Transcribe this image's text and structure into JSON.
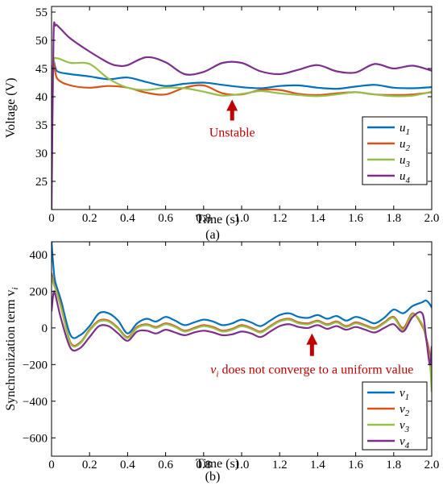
{
  "chart_data": [
    {
      "type": "line",
      "caption": "(a)",
      "xlabel": "Time (s)",
      "ylabel": "Voltage (V)",
      "xlim": [
        0,
        2.0
      ],
      "ylim": [
        20,
        56
      ],
      "xticks": [
        0,
        0.2,
        0.4,
        0.6,
        0.8,
        1.0,
        1.2,
        1.4,
        1.6,
        1.8,
        2.0
      ],
      "xtick_labels": [
        "0",
        "0.2",
        "0.4",
        "0.6",
        "0.8",
        "1.0",
        "1.2",
        "1.4",
        "1.6",
        "1.8",
        "2.0"
      ],
      "yticks": [
        25,
        30,
        35,
        40,
        45,
        50,
        55
      ],
      "ytick_labels": [
        "25",
        "30",
        "35",
        "40",
        "45",
        "50",
        "55"
      ],
      "legend_position": "right",
      "annotation": {
        "text": "Unstable",
        "color": "#c00000",
        "x": 0.95,
        "y": 39.5
      },
      "series": [
        {
          "name": "u",
          "subscript": "1",
          "color": "#0072BD",
          "x": [
            0,
            0.01,
            0.03,
            0.1,
            0.2,
            0.3,
            0.4,
            0.5,
            0.6,
            0.7,
            0.8,
            0.9,
            1.0,
            1.1,
            1.2,
            1.3,
            1.4,
            1.5,
            1.6,
            1.7,
            1.8,
            1.9,
            2.0
          ],
          "y": [
            39,
            46,
            44.5,
            44,
            43.6,
            43.1,
            43.4,
            42.6,
            41.9,
            42.3,
            42.5,
            42.1,
            41.7,
            41.5,
            41.9,
            42.0,
            41.6,
            41.4,
            41.8,
            42.1,
            41.6,
            41.5,
            41.7
          ]
        },
        {
          "name": "u",
          "subscript": "2",
          "color": "#D95319",
          "x": [
            0,
            0.01,
            0.03,
            0.1,
            0.2,
            0.3,
            0.4,
            0.5,
            0.6,
            0.7,
            0.8,
            0.9,
            1.0,
            1.1,
            1.2,
            1.3,
            1.4,
            1.5,
            1.6,
            1.7,
            1.8,
            1.9,
            2.0
          ],
          "y": [
            39,
            46,
            43.2,
            42,
            41.6,
            41.9,
            41.6,
            40.7,
            40.4,
            41.6,
            42.0,
            40.6,
            40.4,
            41.2,
            41.2,
            40.5,
            40.3,
            40.6,
            40.8,
            40.4,
            40.3,
            40.4,
            40.8
          ]
        },
        {
          "name": "u",
          "subscript": "3",
          "color": "#97BF4A",
          "x": [
            0,
            0.01,
            0.03,
            0.1,
            0.2,
            0.3,
            0.4,
            0.5,
            0.6,
            0.7,
            0.8,
            0.9,
            1.0,
            1.1,
            1.2,
            1.3,
            1.4,
            1.5,
            1.6,
            1.7,
            1.8,
            1.9,
            2.0
          ],
          "y": [
            39,
            46,
            46.8,
            46.0,
            45.8,
            43.2,
            41.6,
            41.2,
            41.6,
            41.5,
            40.9,
            40.2,
            40.5,
            41.0,
            40.6,
            40.3,
            40.1,
            40.4,
            40.8,
            40.4,
            40.1,
            40.2,
            40.9
          ]
        },
        {
          "name": "u",
          "subscript": "4",
          "color": "#7E2F8E",
          "x": [
            0,
            0.01,
            0.02,
            0.04,
            0.1,
            0.2,
            0.3,
            0.35,
            0.4,
            0.5,
            0.6,
            0.7,
            0.8,
            0.9,
            1.0,
            1.1,
            1.2,
            1.3,
            1.4,
            1.5,
            1.6,
            1.7,
            1.8,
            1.9,
            2.0
          ],
          "y": [
            20,
            50,
            52.6,
            52.3,
            50.3,
            48.0,
            46.0,
            45.5,
            45.6,
            47.0,
            46.1,
            44.0,
            44.4,
            46.0,
            46.0,
            44.5,
            44.0,
            44.8,
            45.6,
            44.5,
            44.3,
            45.8,
            45.0,
            45.5,
            44.6
          ]
        }
      ]
    },
    {
      "type": "line",
      "caption": "(b)",
      "xlabel": "Time (s)",
      "ylabel": "Synchronization term v",
      "ylabel_subscript": "i",
      "xlim": [
        0,
        2.0
      ],
      "ylim": [
        -700,
        470
      ],
      "xticks": [
        0,
        0.2,
        0.4,
        0.6,
        0.8,
        1.0,
        1.2,
        1.4,
        1.6,
        1.8,
        2.0
      ],
      "xtick_labels": [
        "0",
        "0.2",
        "0.4",
        "0.6",
        "0.8",
        "1.0",
        "1.2",
        "1.4",
        "1.6",
        "1.8",
        "2.0"
      ],
      "yticks": [
        -600,
        -400,
        -200,
        0,
        200,
        400
      ],
      "ytick_labels": [
        "−600",
        "−400",
        "−200",
        "0",
        "200",
        "400"
      ],
      "legend_position": "bottom-right",
      "annotation": {
        "text_prefix": "v",
        "text_subscript": "i",
        "text_suffix": " does not converge to a uniform value",
        "color": "#c00000",
        "x": 1.37,
        "y": -30
      },
      "series": [
        {
          "name": "v",
          "subscript": "1",
          "color": "#0072BD",
          "x": [
            0,
            0.01,
            0.02,
            0.05,
            0.1,
            0.15,
            0.2,
            0.25,
            0.3,
            0.35,
            0.4,
            0.45,
            0.5,
            0.55,
            0.6,
            0.65,
            0.7,
            0.75,
            0.8,
            0.85,
            0.9,
            0.95,
            1.0,
            1.05,
            1.1,
            1.15,
            1.2,
            1.25,
            1.3,
            1.35,
            1.4,
            1.45,
            1.5,
            1.55,
            1.6,
            1.65,
            1.7,
            1.75,
            1.8,
            1.85,
            1.9,
            1.95,
            1.97,
            1.99,
            2.0
          ],
          "y": [
            470,
            330,
            250,
            150,
            -40,
            -40,
            10,
            80,
            80,
            40,
            -30,
            25,
            50,
            35,
            60,
            40,
            15,
            30,
            45,
            35,
            15,
            25,
            45,
            30,
            10,
            40,
            70,
            80,
            60,
            55,
            70,
            50,
            65,
            40,
            60,
            45,
            25,
            55,
            100,
            80,
            120,
            140,
            150,
            130,
            110
          ]
        },
        {
          "name": "v",
          "subscript": "2",
          "color": "#D95319",
          "x": [
            0,
            0.01,
            0.02,
            0.05,
            0.1,
            0.15,
            0.2,
            0.25,
            0.3,
            0.35,
            0.4,
            0.45,
            0.5,
            0.55,
            0.6,
            0.65,
            0.7,
            0.75,
            0.8,
            0.85,
            0.9,
            0.95,
            1.0,
            1.05,
            1.1,
            1.15,
            1.2,
            1.25,
            1.3,
            1.35,
            1.4,
            1.45,
            1.5,
            1.55,
            1.6,
            1.65,
            1.7,
            1.75,
            1.8,
            1.85,
            1.9,
            1.95,
            1.97,
            1.99,
            2.0
          ],
          "y": [
            300,
            250,
            220,
            120,
            -80,
            -80,
            -10,
            40,
            40,
            0,
            -50,
            5,
            20,
            5,
            25,
            10,
            -15,
            0,
            15,
            5,
            -15,
            -5,
            15,
            0,
            -20,
            10,
            40,
            50,
            30,
            25,
            40,
            20,
            35,
            10,
            30,
            15,
            0,
            30,
            60,
            0,
            80,
            10,
            -50,
            -150,
            -300
          ]
        },
        {
          "name": "v",
          "subscript": "3",
          "color": "#97BF4A",
          "x": [
            0,
            0.01,
            0.02,
            0.05,
            0.1,
            0.15,
            0.2,
            0.25,
            0.3,
            0.35,
            0.4,
            0.45,
            0.5,
            0.55,
            0.6,
            0.65,
            0.7,
            0.75,
            0.8,
            0.85,
            0.9,
            0.95,
            1.0,
            1.05,
            1.1,
            1.15,
            1.2,
            1.25,
            1.3,
            1.35,
            1.4,
            1.45,
            1.5,
            1.55,
            1.6,
            1.65,
            1.7,
            1.75,
            1.8,
            1.85,
            1.9,
            1.95,
            1.97,
            1.99,
            2.0
          ],
          "y": [
            280,
            240,
            215,
            110,
            -85,
            -85,
            -15,
            35,
            35,
            -5,
            -55,
            0,
            15,
            0,
            20,
            5,
            -20,
            -5,
            10,
            0,
            -20,
            -10,
            10,
            -5,
            -25,
            5,
            35,
            45,
            25,
            20,
            35,
            15,
            30,
            5,
            25,
            10,
            -5,
            25,
            55,
            -10,
            75,
            20,
            -60,
            -180,
            -350
          ]
        },
        {
          "name": "v",
          "subscript": "4",
          "color": "#7E2F8E",
          "x": [
            0,
            0.01,
            0.02,
            0.05,
            0.1,
            0.15,
            0.2,
            0.25,
            0.3,
            0.35,
            0.4,
            0.45,
            0.5,
            0.55,
            0.6,
            0.65,
            0.7,
            0.75,
            0.8,
            0.85,
            0.9,
            0.95,
            1.0,
            1.05,
            1.1,
            1.15,
            1.2,
            1.25,
            1.3,
            1.35,
            1.4,
            1.45,
            1.5,
            1.55,
            1.6,
            1.65,
            1.7,
            1.75,
            1.8,
            1.85,
            1.9,
            1.95,
            1.97,
            1.99,
            2.0
          ],
          "y": [
            90,
            190,
            180,
            50,
            -110,
            -110,
            -50,
            10,
            10,
            -30,
            -70,
            -20,
            -15,
            -30,
            -10,
            -25,
            -40,
            -25,
            -15,
            -25,
            -40,
            -35,
            -20,
            -30,
            -50,
            -20,
            10,
            20,
            5,
            0,
            15,
            -5,
            10,
            -10,
            5,
            -10,
            -25,
            0,
            20,
            -20,
            60,
            80,
            -50,
            -200,
            -100
          ]
        }
      ]
    }
  ]
}
